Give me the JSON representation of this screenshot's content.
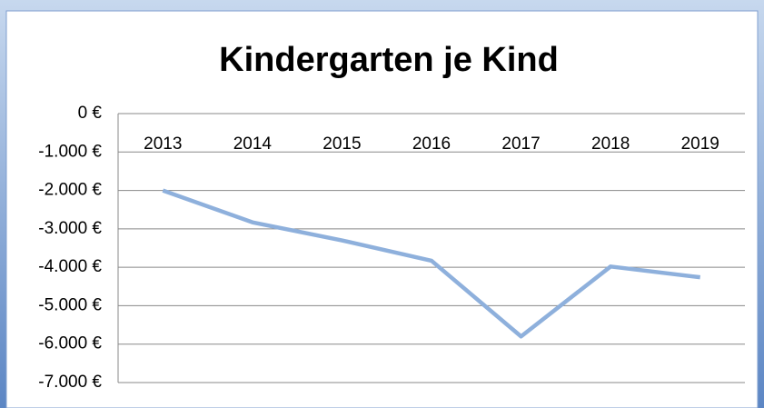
{
  "chart_data": {
    "type": "line",
    "title": "Kindergarten je Kind",
    "categories": [
      "2013",
      "2014",
      "2015",
      "2016",
      "2017",
      "2018",
      "2019"
    ],
    "series": [
      {
        "name": "Kindergarten je Kind",
        "color": "#8eb0dc",
        "values": [
          -2000,
          -2830,
          -3300,
          -3830,
          -5800,
          -3980,
          -4260
        ]
      }
    ],
    "ylim": [
      -7000,
      0
    ],
    "yticks": [
      {
        "value": 0,
        "label": "0 €"
      },
      {
        "value": -1000,
        "label": "-1.000 €"
      },
      {
        "value": -2000,
        "label": "-2.000 €"
      },
      {
        "value": -3000,
        "label": "-3.000 €"
      },
      {
        "value": -4000,
        "label": "-4.000 €"
      },
      {
        "value": -5000,
        "label": "-5.000 €"
      },
      {
        "value": -6000,
        "label": "-6.000 €"
      },
      {
        "value": -7000,
        "label": "-7.000 €"
      }
    ],
    "grid": true
  }
}
